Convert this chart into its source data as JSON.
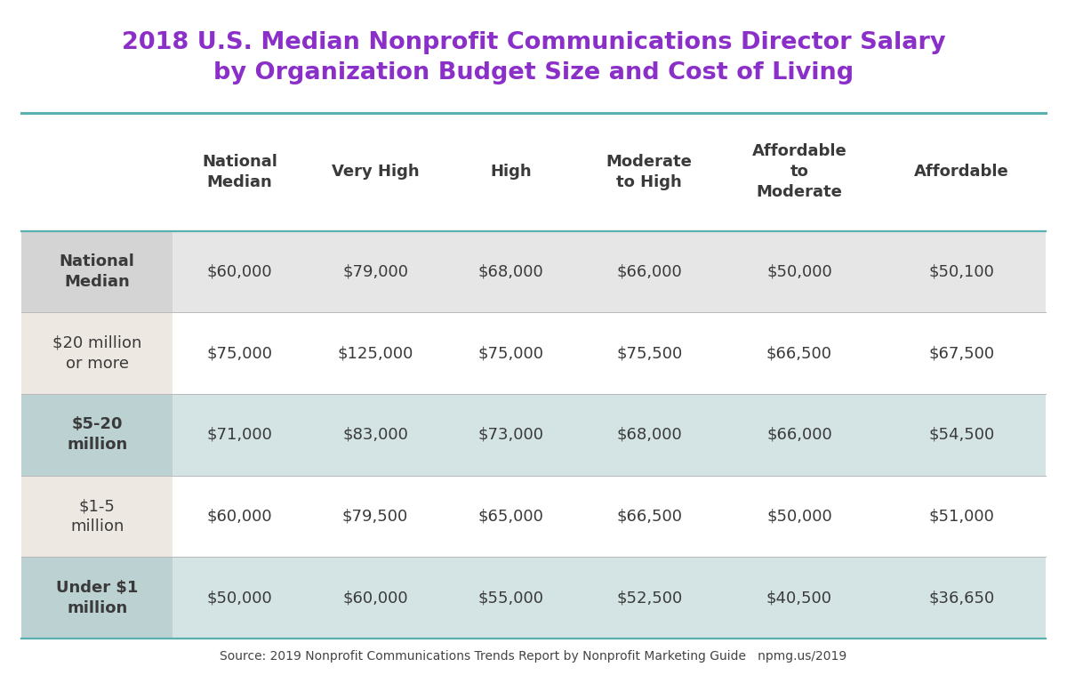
{
  "title_line1": "2018 U.S. Median Nonprofit Communications Director Salary",
  "title_line2": "by Organization Budget Size and Cost of Living",
  "title_color": "#8B2FC9",
  "source_text": "Source: 2019 Nonprofit Communications Trends Report by Nonprofit Marketing Guide   npmg.us/2019",
  "col_headers": [
    "National\nMedian",
    "Very High",
    "High",
    "Moderate\nto High",
    "Affordable\nto\nModerate",
    "Affordable"
  ],
  "row_headers": [
    "National\nMedian",
    "$20 million\nor more",
    "$5-20\nmillion",
    "$1-5\nmillion",
    "Under $1\nmillion"
  ],
  "data": [
    [
      "$60,000",
      "$79,000",
      "$68,000",
      "$66,000",
      "$50,000",
      "$50,100"
    ],
    [
      "$75,000",
      "$125,000",
      "$75,000",
      "$75,500",
      "$66,500",
      "$67,500"
    ],
    [
      "$71,000",
      "$83,000",
      "$73,000",
      "$68,000",
      "$66,000",
      "$54,500"
    ],
    [
      "$60,000",
      "$79,500",
      "$65,000",
      "$66,500",
      "$50,000",
      "$51,000"
    ],
    [
      "$50,000",
      "$60,000",
      "$55,000",
      "$52,500",
      "$40,500",
      "$36,650"
    ]
  ],
  "row_header_bold": [
    true,
    false,
    true,
    false,
    true
  ],
  "bg_color": "#ffffff",
  "row_rest_colors": [
    "#e6e6e6",
    "#ffffff",
    "#d4e4e4",
    "#ffffff",
    "#d4e4e4"
  ],
  "row_col0_colors": [
    "#d4d4d4",
    "#ede8e2",
    "#bcd2d2",
    "#ede8e2",
    "#bcd2d2"
  ],
  "teal_line_color": "#5aafb0",
  "cell_text_color": "#3a3a3a",
  "row_header_color": "#3a3a3a",
  "col_header_color": "#3a3a3a"
}
